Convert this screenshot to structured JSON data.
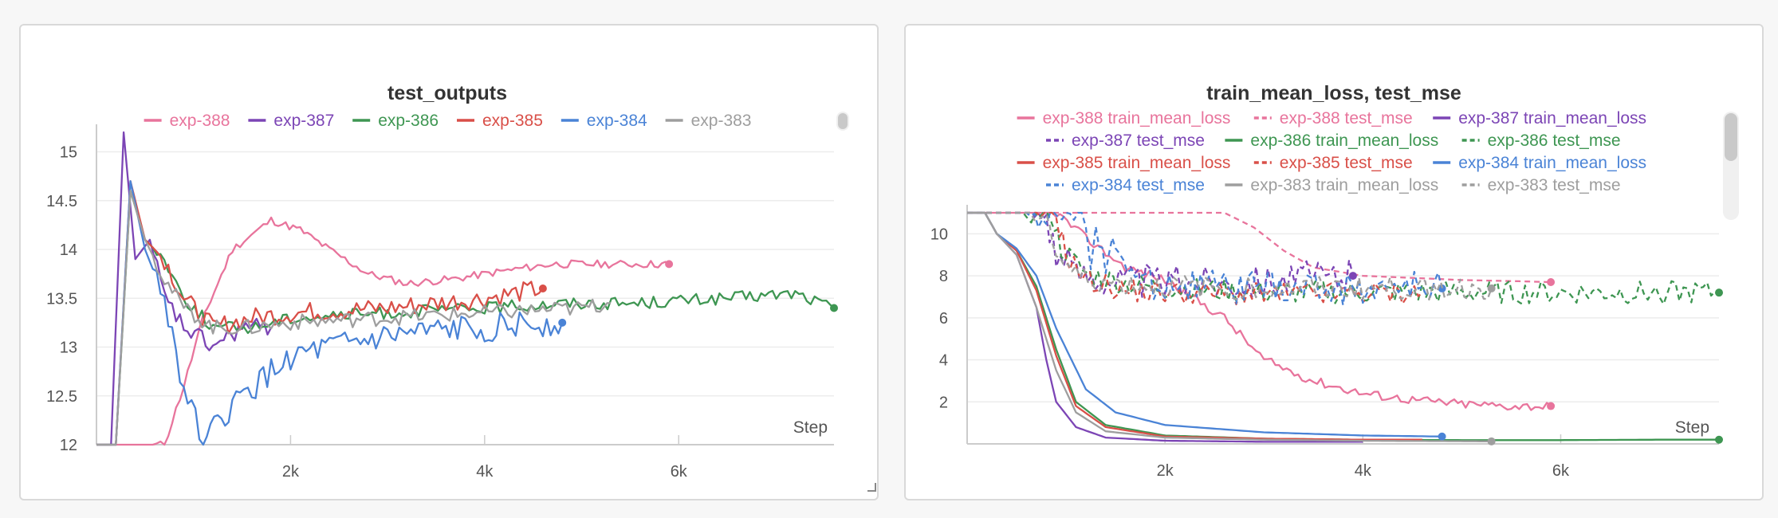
{
  "chart_data": [
    {
      "type": "line",
      "title": "test_outputs",
      "xlabel": "Step",
      "ylabel": "",
      "xlim": [
        0,
        7600
      ],
      "ylim": [
        12,
        15.2
      ],
      "x_ticks": [
        {
          "value": 2000,
          "label": "2k"
        },
        {
          "value": 4000,
          "label": "4k"
        },
        {
          "value": 6000,
          "label": "6k"
        }
      ],
      "y_ticks": [
        {
          "value": 12,
          "label": "12"
        },
        {
          "value": 12.5,
          "label": "12.5"
        },
        {
          "value": 13,
          "label": "13"
        },
        {
          "value": 13.5,
          "label": "13.5"
        },
        {
          "value": 14,
          "label": "14"
        },
        {
          "value": 14.5,
          "label": "14.5"
        },
        {
          "value": 15,
          "label": "15"
        }
      ],
      "grid": true,
      "legend_position": "top",
      "legend_rows": [
        [
          0,
          1,
          2,
          3,
          4,
          5
        ]
      ],
      "series": [
        {
          "name": "exp-388",
          "color": "#e8749c",
          "dash": false,
          "marker": true,
          "noise": 0.05,
          "x": [
            0,
            500,
            700,
            900,
            1100,
            1400,
            1800,
            2100,
            2400,
            2800,
            3200,
            3700,
            4200,
            4700,
            5200,
            5600,
            5900
          ],
          "y": [
            12,
            12,
            12,
            12.6,
            13.3,
            14.0,
            14.3,
            14.2,
            14.0,
            13.75,
            13.65,
            13.7,
            13.78,
            13.85,
            13.85,
            13.85,
            13.85
          ]
        },
        {
          "name": "exp-387",
          "color": "#7c45b5",
          "dash": false,
          "marker": false,
          "noise": 0.12,
          "x": [
            0,
            150,
            280,
            400,
            550,
            700,
            900,
            1200,
            1500,
            1800
          ],
          "y": [
            12,
            12,
            15.2,
            13.9,
            14.1,
            13.5,
            13.2,
            13.0,
            13.2,
            13.2
          ]
        },
        {
          "name": "exp-386",
          "color": "#3e9652",
          "dash": false,
          "marker": true,
          "noise": 0.08,
          "x": [
            0,
            200,
            350,
            500,
            700,
            900,
            1200,
            1600,
            2000,
            3000,
            4000,
            4800,
            5500,
            6500,
            7200,
            7600
          ],
          "y": [
            12,
            12,
            14.6,
            14.1,
            13.9,
            13.5,
            13.2,
            13.2,
            13.3,
            13.35,
            13.4,
            13.45,
            13.45,
            13.5,
            13.55,
            13.4
          ]
        },
        {
          "name": "exp-385",
          "color": "#d94f48",
          "dash": false,
          "marker": true,
          "noise": 0.13,
          "x": [
            0,
            200,
            350,
            500,
            700,
            900,
            1200,
            1600,
            2000,
            3000,
            4000,
            4600
          ],
          "y": [
            12,
            12,
            14.7,
            14.1,
            13.9,
            13.5,
            13.2,
            13.3,
            13.35,
            13.4,
            13.5,
            13.6
          ]
        },
        {
          "name": "exp-384",
          "color": "#4a83d6",
          "dash": false,
          "marker": true,
          "noise": 0.18,
          "x": [
            0,
            200,
            350,
            500,
            700,
            900,
            1100,
            1400,
            2000,
            3000,
            4000,
            4800
          ],
          "y": [
            12,
            12,
            14.7,
            14.0,
            13.5,
            12.6,
            12.0,
            12.4,
            12.9,
            13.1,
            13.2,
            13.25
          ]
        },
        {
          "name": "exp-383",
          "color": "#9e9e9e",
          "dash": false,
          "marker": false,
          "noise": 0.1,
          "x": [
            0,
            200,
            350,
            500,
            700,
            900,
            1200,
            1600,
            2000,
            3000,
            4000,
            5000,
            5300
          ],
          "y": [
            12,
            12,
            14.6,
            14.1,
            13.7,
            13.4,
            13.2,
            13.2,
            13.25,
            13.3,
            13.35,
            13.4,
            13.45
          ]
        }
      ]
    },
    {
      "type": "line",
      "title": "train_mean_loss, test_mse",
      "xlabel": "Step",
      "ylabel": "",
      "xlim": [
        0,
        7600
      ],
      "ylim": [
        0,
        11
      ],
      "x_ticks": [
        {
          "value": 2000,
          "label": "2k"
        },
        {
          "value": 4000,
          "label": "4k"
        },
        {
          "value": 6000,
          "label": "6k"
        }
      ],
      "y_ticks": [
        {
          "value": 2,
          "label": "2"
        },
        {
          "value": 4,
          "label": "4"
        },
        {
          "value": 6,
          "label": "6"
        },
        {
          "value": 8,
          "label": "8"
        },
        {
          "value": 10,
          "label": "10"
        }
      ],
      "grid": true,
      "legend_position": "top",
      "legend_rows": [
        [
          0,
          1,
          2
        ],
        [
          3,
          4,
          5
        ],
        [
          6,
          7,
          8
        ],
        [
          9,
          10,
          11
        ]
      ],
      "series": [
        {
          "name": "exp-388 train_mean_loss",
          "color": "#e8749c",
          "dash": false,
          "marker": true,
          "noise": 0.08,
          "x": [
            0,
            500,
            900,
            1200,
            1600,
            2000,
            2600,
            3000,
            3500,
            4000,
            4500,
            5000,
            5500,
            5900
          ],
          "y": [
            11,
            11,
            11,
            9.8,
            8.4,
            7.8,
            6.0,
            4.0,
            3.0,
            2.4,
            2.1,
            1.9,
            1.8,
            1.8
          ]
        },
        {
          "name": "exp-388 test_mse",
          "color": "#e8749c",
          "dash": true,
          "marker": true,
          "noise": 0,
          "x": [
            0,
            1800,
            2600,
            2900,
            3200,
            3500,
            4000,
            4500,
            5000,
            5500,
            5900
          ],
          "y": [
            11,
            11,
            11,
            10.3,
            9.2,
            8.4,
            8.0,
            7.9,
            7.8,
            7.75,
            7.7
          ]
        },
        {
          "name": "exp-387 train_mean_loss",
          "color": "#7c45b5",
          "dash": false,
          "marker": false,
          "noise": 0,
          "x": [
            0,
            180,
            300,
            500,
            700,
            800,
            900,
            1100,
            1400,
            2000,
            3000,
            4000
          ],
          "y": [
            11,
            11,
            10,
            9.0,
            6.5,
            4.0,
            2.0,
            0.8,
            0.3,
            0.15,
            0.1,
            0.1
          ]
        },
        {
          "name": "exp-387 test_mse",
          "color": "#7c45b5",
          "dash": true,
          "marker": true,
          "noise": 0.3,
          "x": [
            0,
            800,
            900,
            1100,
            1500,
            2000,
            3000,
            3900
          ],
          "y": [
            11,
            11,
            9.0,
            8.2,
            7.8,
            7.7,
            7.8,
            8.0
          ]
        },
        {
          "name": "exp-386 train_mean_loss",
          "color": "#3e9652",
          "dash": false,
          "marker": true,
          "noise": 0,
          "x": [
            0,
            180,
            300,
            500,
            700,
            900,
            1100,
            1400,
            2000,
            3000,
            4000,
            5000,
            6000,
            7000,
            7600
          ],
          "y": [
            11,
            11,
            10,
            9.2,
            7.5,
            4.5,
            2.0,
            0.9,
            0.4,
            0.25,
            0.2,
            0.18,
            0.18,
            0.2,
            0.2
          ]
        },
        {
          "name": "exp-386 test_mse",
          "color": "#3e9652",
          "dash": true,
          "marker": true,
          "noise": 0.2,
          "x": [
            0,
            850,
            950,
            1200,
            1600,
            2000,
            3000,
            4000,
            5000,
            6000,
            7600
          ],
          "y": [
            11,
            11,
            9.3,
            8.1,
            7.6,
            7.4,
            7.2,
            7.2,
            7.2,
            7.2,
            7.2
          ]
        },
        {
          "name": "exp-385 train_mean_loss",
          "color": "#d94f48",
          "dash": false,
          "marker": false,
          "noise": 0,
          "x": [
            0,
            180,
            300,
            500,
            700,
            900,
            1100,
            1400,
            2000,
            3000,
            4000,
            4600
          ],
          "y": [
            11,
            11,
            10,
            9.2,
            7.3,
            4.2,
            1.8,
            0.8,
            0.35,
            0.25,
            0.2,
            0.2
          ]
        },
        {
          "name": "exp-385 test_mse",
          "color": "#d94f48",
          "dash": true,
          "marker": false,
          "noise": 0.2,
          "x": [
            0,
            900,
            1000,
            1200,
            1600,
            2000,
            3000,
            4600
          ],
          "y": [
            11,
            11,
            9.0,
            7.8,
            7.3,
            7.2,
            7.1,
            7.2
          ]
        },
        {
          "name": "exp-384 train_mean_loss",
          "color": "#4a83d6",
          "dash": false,
          "marker": true,
          "noise": 0,
          "x": [
            0,
            180,
            300,
            500,
            700,
            900,
            1200,
            1500,
            2000,
            3000,
            4000,
            4800
          ],
          "y": [
            11,
            11,
            10,
            9.3,
            8.0,
            5.5,
            2.6,
            1.5,
            0.9,
            0.55,
            0.4,
            0.35
          ]
        },
        {
          "name": "exp-384 test_mse",
          "color": "#4a83d6",
          "dash": true,
          "marker": true,
          "noise": 0.3,
          "x": [
            0,
            1200,
            1250,
            1300,
            1400,
            1500,
            1700,
            2000,
            3000,
            4000,
            4800
          ],
          "y": [
            11,
            11,
            9.0,
            11,
            8.2,
            9.5,
            7.8,
            7.6,
            7.4,
            7.4,
            7.4
          ]
        },
        {
          "name": "exp-383 train_mean_loss",
          "color": "#9e9e9e",
          "dash": false,
          "marker": true,
          "noise": 0,
          "x": [
            0,
            180,
            300,
            500,
            700,
            900,
            1100,
            1400,
            2000,
            3000,
            4000,
            5300
          ],
          "y": [
            11,
            11,
            10,
            9.0,
            6.5,
            3.5,
            1.5,
            0.6,
            0.3,
            0.2,
            0.15,
            0.12
          ]
        },
        {
          "name": "exp-383 test_mse",
          "color": "#9e9e9e",
          "dash": true,
          "marker": true,
          "noise": 0.2,
          "x": [
            0,
            800,
            900,
            1100,
            1500,
            2000,
            3000,
            4000,
            5300
          ],
          "y": [
            11,
            11,
            9.0,
            8.0,
            7.6,
            7.5,
            7.4,
            7.4,
            7.4
          ]
        }
      ]
    }
  ]
}
